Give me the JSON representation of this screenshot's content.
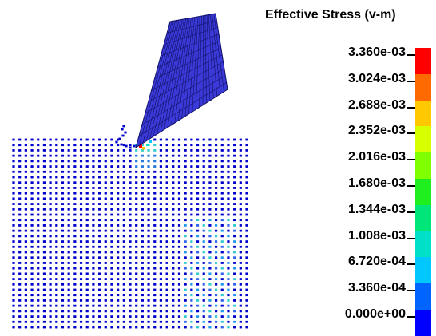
{
  "legend": {
    "title": "Effective Stress (v-m)",
    "labels": [
      "3.360e-03",
      "3.024e-03",
      "2.688e-03",
      "2.352e-03",
      "2.016e-03",
      "1.680e-03",
      "1.344e-03",
      "1.008e-03",
      "6.720e-04",
      "3.360e-04",
      "0.000e+00"
    ],
    "colors": [
      "#ff0000",
      "#ff6a00",
      "#ffc800",
      "#d8ff00",
      "#7fff00",
      "#1fef1f",
      "#00e678",
      "#00e0c8",
      "#00c8ff",
      "#0064ff",
      "#0000ff"
    ]
  },
  "scene": {
    "particle_color": "#0000cc",
    "tool_fill": "#3a3ad8",
    "tool_edge": "#111166",
    "hot_colors": [
      "#ff0000",
      "#ffc800",
      "#00e0c8",
      "#00c8ff"
    ]
  }
}
